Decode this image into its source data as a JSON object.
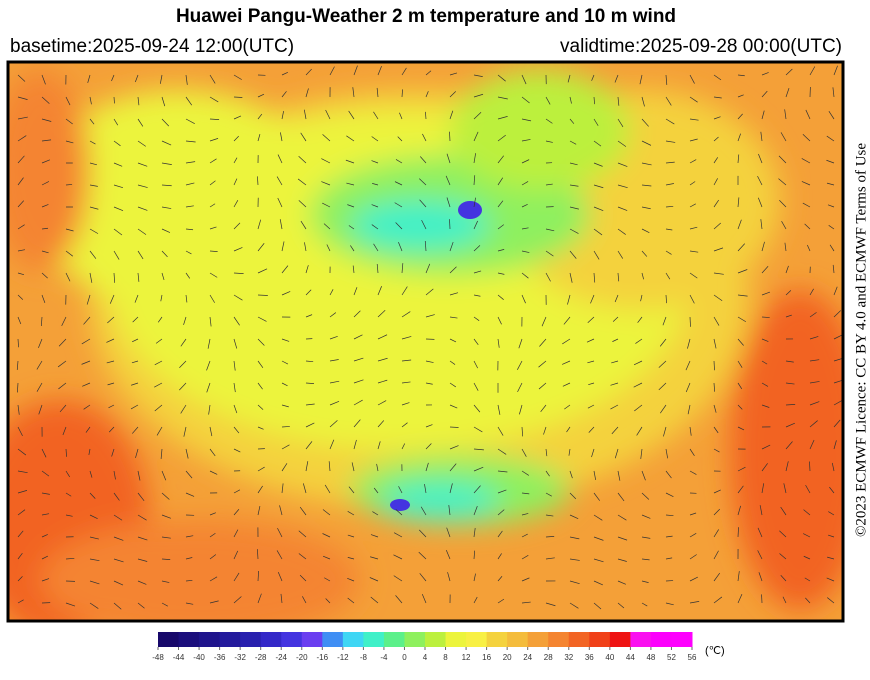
{
  "title": "Huawei Pangu-Weather  2 m temperature and 10 m wind",
  "basetime": "basetime:2025-09-24 12:00(UTC)",
  "validtime": "validtime:2025-09-28 00:00(UTC)",
  "license": "©2023 ECMWF Licence: CC BY 4.0 and ECMWF Terms of Use",
  "colorbar": {
    "unit": "(℃)",
    "ticks": [
      -48,
      -44,
      -40,
      -36,
      -32,
      -28,
      -24,
      -20,
      -16,
      -12,
      -8,
      -4,
      0,
      4,
      8,
      12,
      16,
      20,
      24,
      28,
      32,
      36,
      40,
      44,
      48,
      52,
      56
    ],
    "colors": [
      "#17086a",
      "#1b0e7c",
      "#1f148c",
      "#231a9c",
      "#2820ae",
      "#3428c8",
      "#4434e0",
      "#6a3ef0",
      "#3f8ef4",
      "#3fd6f4",
      "#40f0c8",
      "#5cf08a",
      "#8ef05e",
      "#bcf03e",
      "#ecf43c",
      "#f8f044",
      "#f4d23e",
      "#f4bc3c",
      "#f4a038",
      "#f48430",
      "#f26424",
      "#f04018",
      "#ee1212",
      "#fa10f0",
      "#fc00fc",
      "#fe00fe"
    ]
  }
}
